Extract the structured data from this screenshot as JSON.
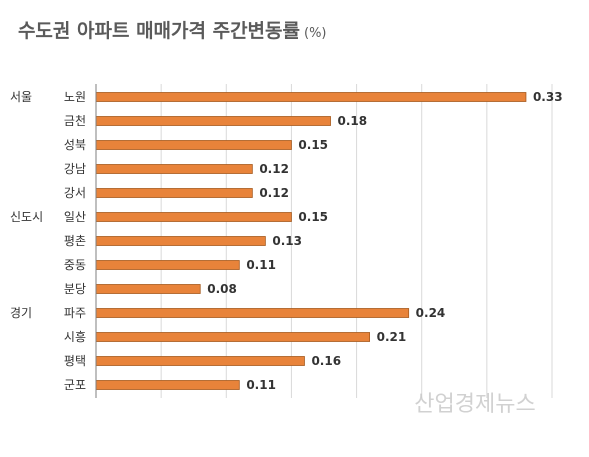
{
  "chart_data": {
    "type": "bar",
    "orientation": "horizontal",
    "title": "수도권 아파트 매매가격 주간변동률",
    "title_unit": "(%)",
    "groups": [
      {
        "label": "서울",
        "start_index": 0
      },
      {
        "label": "신도시",
        "start_index": 5
      },
      {
        "label": "경기",
        "start_index": 9
      }
    ],
    "categories": [
      "노원",
      "금천",
      "성북",
      "강남",
      "강서",
      "일산",
      "평촌",
      "중동",
      "분당",
      "파주",
      "시흥",
      "평택",
      "군포"
    ],
    "values": [
      0.33,
      0.18,
      0.15,
      0.12,
      0.12,
      0.15,
      0.13,
      0.11,
      0.08,
      0.24,
      0.21,
      0.16,
      0.11
    ],
    "value_labels": [
      "0.33",
      "0.18",
      "0.15",
      "0.12",
      "0.12",
      "0.15",
      "0.13",
      "0.11",
      "0.08",
      "0.24",
      "0.21",
      "0.16",
      "0.11"
    ],
    "xlim": [
      0,
      0.35
    ],
    "x_gridline_step": 0.05,
    "grid": true,
    "bar_color": "#E8833A",
    "bar_stroke": "#A65A1E"
  },
  "watermark": "산업경제뉴스"
}
